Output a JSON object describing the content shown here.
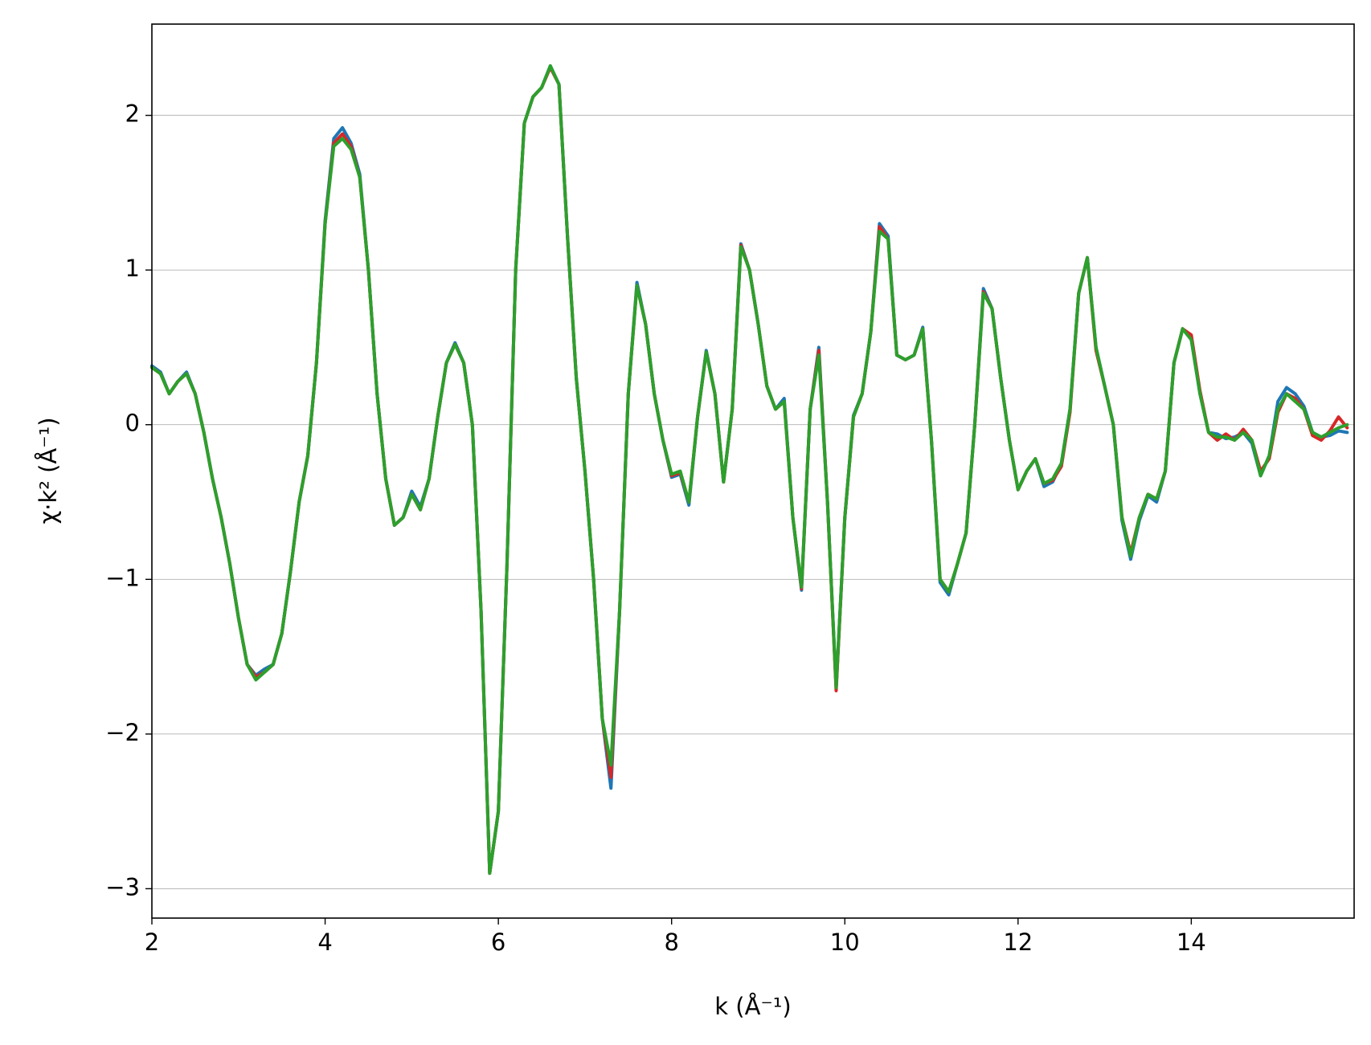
{
  "chart_data": {
    "type": "line",
    "xlabel": "k (Å⁻¹)",
    "ylabel": "χ·k² (Å⁻¹)",
    "x": [
      2.0,
      2.1,
      2.2,
      2.3,
      2.4,
      2.5,
      2.6,
      2.7,
      2.8,
      2.9,
      3.0,
      3.1,
      3.2,
      3.3,
      3.4,
      3.5,
      3.6,
      3.7,
      3.8,
      3.9,
      4.0,
      4.1,
      4.2,
      4.3,
      4.4,
      4.5,
      4.6,
      4.7,
      4.8,
      4.9,
      5.0,
      5.1,
      5.2,
      5.3,
      5.4,
      5.5,
      5.6,
      5.7,
      5.8,
      5.9,
      6.0,
      6.1,
      6.2,
      6.3,
      6.4,
      6.5,
      6.6,
      6.7,
      6.8,
      6.9,
      7.0,
      7.1,
      7.2,
      7.3,
      7.4,
      7.5,
      7.6,
      7.7,
      7.8,
      7.9,
      8.0,
      8.1,
      8.2,
      8.3,
      8.4,
      8.5,
      8.6,
      8.7,
      8.8,
      8.9,
      9.0,
      9.1,
      9.2,
      9.3,
      9.4,
      9.5,
      9.6,
      9.7,
      9.8,
      9.9,
      10.0,
      10.1,
      10.2,
      10.3,
      10.4,
      10.5,
      10.6,
      10.7,
      10.8,
      10.9,
      11.0,
      11.1,
      11.2,
      11.3,
      11.4,
      11.5,
      11.6,
      11.7,
      11.8,
      11.9,
      12.0,
      12.1,
      12.2,
      12.3,
      12.4,
      12.5,
      12.6,
      12.7,
      12.8,
      12.9,
      13.0,
      13.1,
      13.2,
      13.3,
      13.4,
      13.5,
      13.6,
      13.7,
      13.8,
      13.9,
      14.0,
      14.1,
      14.2,
      14.3,
      14.4,
      14.5,
      14.6,
      14.7,
      14.8,
      14.9,
      15.0,
      15.1,
      15.2,
      15.3,
      15.4,
      15.5,
      15.6,
      15.7,
      15.8
    ],
    "series": [
      {
        "color": "#1f77b4",
        "values": [
          0.38,
          0.34,
          0.2,
          0.28,
          0.34,
          0.2,
          -0.05,
          -0.35,
          -0.6,
          -0.9,
          -1.25,
          -1.55,
          -1.62,
          -1.58,
          -1.55,
          -1.35,
          -0.95,
          -0.5,
          -0.2,
          0.4,
          1.32,
          1.85,
          1.92,
          1.82,
          1.62,
          1.0,
          0.2,
          -0.35,
          -0.65,
          -0.6,
          -0.43,
          -0.53,
          -0.35,
          0.05,
          0.4,
          0.53,
          0.4,
          0.0,
          -1.2,
          -2.9,
          -2.5,
          -0.9,
          1.0,
          1.95,
          2.12,
          2.18,
          2.32,
          2.2,
          1.2,
          0.3,
          -0.3,
          -1.0,
          -1.9,
          -2.35,
          -1.2,
          0.2,
          0.92,
          0.65,
          0.2,
          -0.1,
          -0.34,
          -0.32,
          -0.52,
          0.05,
          0.48,
          0.2,
          -0.37,
          0.1,
          1.17,
          1.0,
          0.65,
          0.25,
          0.1,
          0.17,
          -0.6,
          -1.07,
          0.1,
          0.5,
          -0.5,
          -1.7,
          -0.6,
          0.06,
          0.2,
          0.6,
          1.3,
          1.22,
          0.45,
          0.42,
          0.45,
          0.63,
          -0.1,
          -1.02,
          -1.1,
          -0.9,
          -0.7,
          0.0,
          0.88,
          0.75,
          0.3,
          -0.1,
          -0.42,
          -0.3,
          -0.22,
          -0.4,
          -0.37,
          -0.25,
          0.1,
          0.85,
          1.08,
          0.5,
          0.25,
          0.0,
          -0.62,
          -0.87,
          -0.62,
          -0.46,
          -0.5,
          -0.3,
          0.4,
          0.62,
          0.55,
          0.2,
          -0.05,
          -0.06,
          -0.09,
          -0.08,
          -0.05,
          -0.12,
          -0.33,
          -0.2,
          0.15,
          0.24,
          0.2,
          0.12,
          -0.05,
          -0.08,
          -0.07,
          -0.04,
          -0.05
        ]
      },
      {
        "color": "#d62728",
        "values": [
          0.37,
          0.33,
          0.2,
          0.28,
          0.33,
          0.2,
          -0.05,
          -0.35,
          -0.6,
          -0.9,
          -1.25,
          -1.55,
          -1.63,
          -1.6,
          -1.55,
          -1.35,
          -0.95,
          -0.5,
          -0.2,
          0.4,
          1.3,
          1.82,
          1.88,
          1.8,
          1.6,
          1.0,
          0.2,
          -0.35,
          -0.65,
          -0.6,
          -0.45,
          -0.55,
          -0.35,
          0.05,
          0.4,
          0.52,
          0.4,
          0.0,
          -1.2,
          -2.9,
          -2.5,
          -0.9,
          1.0,
          1.95,
          2.12,
          2.18,
          2.31,
          2.2,
          1.2,
          0.3,
          -0.3,
          -1.0,
          -1.9,
          -2.28,
          -1.2,
          0.2,
          0.9,
          0.65,
          0.2,
          -0.1,
          -0.33,
          -0.31,
          -0.5,
          0.05,
          0.47,
          0.2,
          -0.37,
          0.1,
          1.16,
          1.0,
          0.65,
          0.25,
          0.1,
          0.15,
          -0.6,
          -1.06,
          0.1,
          0.48,
          -0.5,
          -1.72,
          -0.6,
          0.05,
          0.2,
          0.6,
          1.28,
          1.2,
          0.45,
          0.42,
          0.45,
          0.62,
          -0.1,
          -1.0,
          -1.08,
          -0.9,
          -0.7,
          0.0,
          0.86,
          0.75,
          0.3,
          -0.1,
          -0.42,
          -0.3,
          -0.22,
          -0.38,
          -0.36,
          -0.27,
          0.08,
          0.85,
          1.08,
          0.48,
          0.25,
          0.0,
          -0.6,
          -0.83,
          -0.6,
          -0.45,
          -0.48,
          -0.3,
          0.4,
          0.62,
          0.58,
          0.22,
          -0.05,
          -0.1,
          -0.06,
          -0.1,
          -0.03,
          -0.1,
          -0.3,
          -0.22,
          0.08,
          0.2,
          0.17,
          0.1,
          -0.07,
          -0.1,
          -0.04,
          0.05,
          -0.02
        ]
      },
      {
        "color": "#2ca02c",
        "values": [
          0.37,
          0.33,
          0.2,
          0.28,
          0.33,
          0.2,
          -0.05,
          -0.35,
          -0.6,
          -0.9,
          -1.25,
          -1.55,
          -1.65,
          -1.6,
          -1.55,
          -1.35,
          -0.95,
          -0.5,
          -0.2,
          0.4,
          1.3,
          1.8,
          1.85,
          1.78,
          1.6,
          1.0,
          0.2,
          -0.35,
          -0.65,
          -0.6,
          -0.45,
          -0.55,
          -0.35,
          0.05,
          0.4,
          0.52,
          0.4,
          0.0,
          -1.2,
          -2.9,
          -2.5,
          -0.9,
          1.0,
          1.95,
          2.12,
          2.18,
          2.32,
          2.2,
          1.2,
          0.3,
          -0.3,
          -1.0,
          -1.9,
          -2.2,
          -1.2,
          0.2,
          0.9,
          0.65,
          0.2,
          -0.1,
          -0.32,
          -0.3,
          -0.5,
          0.05,
          0.47,
          0.2,
          -0.37,
          0.1,
          1.15,
          1.0,
          0.65,
          0.25,
          0.1,
          0.15,
          -0.6,
          -1.05,
          0.1,
          0.45,
          -0.5,
          -1.7,
          -0.6,
          0.05,
          0.2,
          0.6,
          1.25,
          1.2,
          0.45,
          0.42,
          0.45,
          0.62,
          -0.1,
          -1.0,
          -1.08,
          -0.9,
          -0.7,
          0.0,
          0.85,
          0.75,
          0.3,
          -0.1,
          -0.42,
          -0.3,
          -0.22,
          -0.38,
          -0.35,
          -0.25,
          0.1,
          0.85,
          1.08,
          0.5,
          0.25,
          0.0,
          -0.6,
          -0.85,
          -0.6,
          -0.45,
          -0.48,
          -0.3,
          0.4,
          0.62,
          0.55,
          0.2,
          -0.05,
          -0.08,
          -0.08,
          -0.1,
          -0.05,
          -0.1,
          -0.33,
          -0.2,
          0.1,
          0.2,
          0.15,
          0.1,
          -0.05,
          -0.08,
          -0.05,
          -0.02,
          0.0
        ]
      }
    ],
    "xlim": [
      2,
      15.88
    ],
    "ylim": [
      -3.19,
      2.59
    ],
    "xticks": [
      2,
      4,
      6,
      8,
      10,
      12,
      14
    ],
    "yticks": [
      {
        "value": -3,
        "label": "−3"
      },
      {
        "value": -2,
        "label": "−2"
      },
      {
        "value": -1,
        "label": "−1"
      },
      0,
      1,
      2
    ],
    "grid": "y"
  }
}
